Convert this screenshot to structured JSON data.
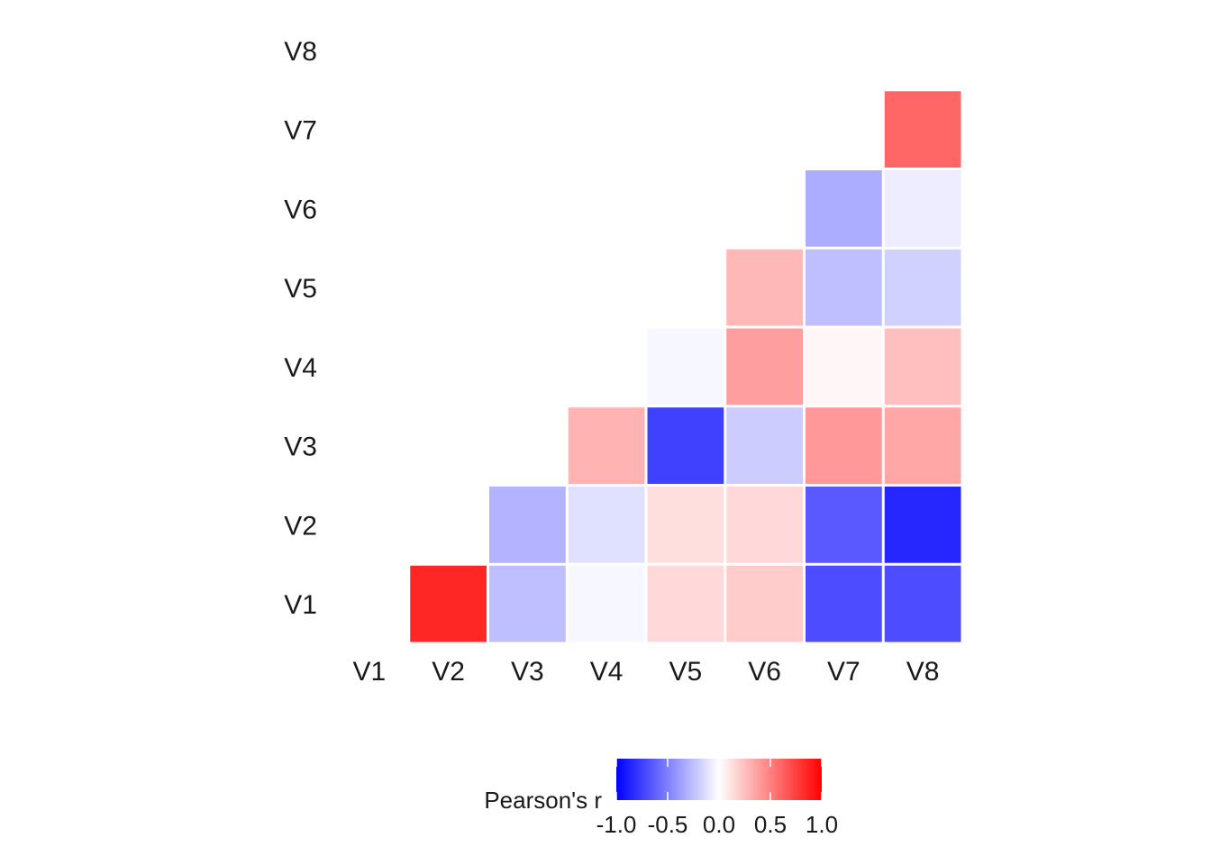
{
  "chart_data": {
    "type": "heatmap",
    "title": "",
    "xlabel": "",
    "ylabel": "",
    "x_categories": [
      "V1",
      "V2",
      "V3",
      "V4",
      "V5",
      "V6",
      "V7",
      "V8"
    ],
    "y_categories": [
      "V1",
      "V2",
      "V3",
      "V4",
      "V5",
      "V6",
      "V7",
      "V8"
    ],
    "triangle": "upper",
    "cells": [
      {
        "x": "V2",
        "y": "V1",
        "value": 0.85
      },
      {
        "x": "V3",
        "y": "V1",
        "value": -0.25
      },
      {
        "x": "V4",
        "y": "V1",
        "value": -0.03
      },
      {
        "x": "V5",
        "y": "V1",
        "value": 0.15
      },
      {
        "x": "V6",
        "y": "V1",
        "value": 0.2
      },
      {
        "x": "V7",
        "y": "V1",
        "value": -0.7
      },
      {
        "x": "V8",
        "y": "V1",
        "value": -0.7
      },
      {
        "x": "V3",
        "y": "V2",
        "value": -0.3
      },
      {
        "x": "V4",
        "y": "V2",
        "value": -0.12
      },
      {
        "x": "V5",
        "y": "V2",
        "value": 0.13
      },
      {
        "x": "V6",
        "y": "V2",
        "value": 0.15
      },
      {
        "x": "V7",
        "y": "V2",
        "value": -0.65
      },
      {
        "x": "V8",
        "y": "V2",
        "value": -0.85
      },
      {
        "x": "V4",
        "y": "V3",
        "value": 0.3
      },
      {
        "x": "V5",
        "y": "V3",
        "value": -0.75
      },
      {
        "x": "V6",
        "y": "V3",
        "value": -0.2
      },
      {
        "x": "V7",
        "y": "V3",
        "value": 0.4
      },
      {
        "x": "V8",
        "y": "V3",
        "value": 0.35
      },
      {
        "x": "V5",
        "y": "V4",
        "value": -0.03
      },
      {
        "x": "V6",
        "y": "V4",
        "value": 0.38
      },
      {
        "x": "V7",
        "y": "V4",
        "value": 0.03
      },
      {
        "x": "V8",
        "y": "V4",
        "value": 0.25
      },
      {
        "x": "V6",
        "y": "V5",
        "value": 0.28
      },
      {
        "x": "V7",
        "y": "V5",
        "value": -0.25
      },
      {
        "x": "V8",
        "y": "V5",
        "value": -0.18
      },
      {
        "x": "V7",
        "y": "V6",
        "value": -0.32
      },
      {
        "x": "V8",
        "y": "V6",
        "value": -0.07
      },
      {
        "x": "V8",
        "y": "V7",
        "value": 0.6
      }
    ],
    "color_scale": {
      "low": "#0000FF",
      "mid": "#FFFFFF",
      "high": "#FF0000",
      "limits": [
        -1,
        1
      ]
    },
    "legend": {
      "title": "Pearson's r",
      "ticks": [
        -1.0,
        -0.5,
        0.0,
        0.5,
        1.0
      ],
      "tick_labels": [
        "-1.0",
        "-0.5",
        "0.0",
        "0.5",
        "1.0"
      ],
      "position": "bottom"
    }
  }
}
